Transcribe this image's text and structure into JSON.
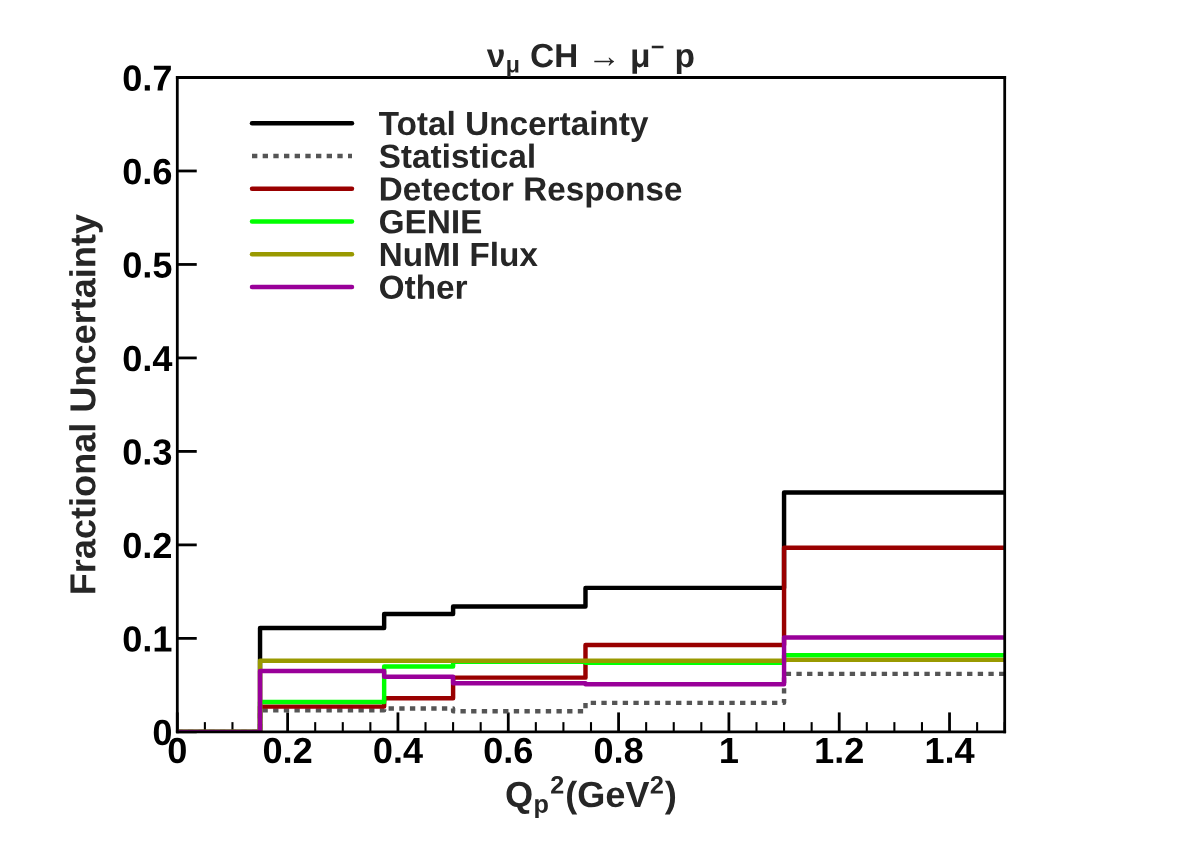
{
  "chart_data": {
    "type": "step",
    "title": "ν$_{μ}$ CH → μ$^{−}$ p",
    "xlabel": "Q$_{p}$$^{2}$(GeV$^{2}$)",
    "ylabel": "Fractional Uncertainty",
    "x": [
      0,
      0.15,
      0.375,
      0.5,
      0.74,
      1.1,
      1.5
    ],
    "series": [
      {
        "name": "Total Uncertainty",
        "color": "#000000",
        "values": [
          0,
          0.111,
          0.126,
          0.134,
          0.154,
          0.256,
          0.256
        ]
      },
      {
        "name": "Statistical",
        "color": "#555555",
        "line_style": "dotted",
        "values": [
          0,
          0.023,
          0.025,
          0.022,
          0.031,
          0.062,
          0.062
        ]
      },
      {
        "name": "Detector Response",
        "color": "#990000",
        "values": [
          0,
          0.027,
          0.036,
          0.058,
          0.093,
          0.197,
          0.197
        ]
      },
      {
        "name": "GENIE",
        "color": "#00ff00",
        "values": [
          0,
          0.032,
          0.07,
          0.075,
          0.074,
          0.082,
          0.082
        ]
      },
      {
        "name": "NuMI Flux",
        "color": "#999900",
        "values": [
          0,
          0.076,
          0.076,
          0.076,
          0.076,
          0.077,
          0.077
        ]
      },
      {
        "name": "Other",
        "color": "#990099",
        "values": [
          0,
          0.065,
          0.059,
          0.052,
          0.051,
          0.101,
          0.101
        ]
      }
    ],
    "xlim": [
      0,
      1.5
    ],
    "ylim": [
      0,
      0.7
    ],
    "xticks": [
      0,
      0.2,
      0.4,
      0.6,
      0.8,
      1,
      1.2,
      1.4
    ],
    "yticks": [
      0,
      0.1,
      0.2,
      0.3,
      0.4,
      0.5,
      0.6,
      0.7
    ],
    "legend": "top left",
    "grid": false
  }
}
